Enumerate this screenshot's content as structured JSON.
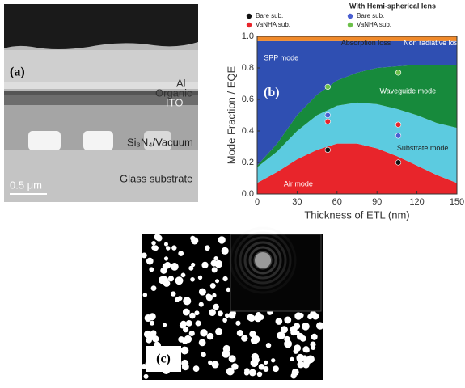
{
  "panel_a": {
    "label": "(a)",
    "layers": [
      "Al",
      "Organic",
      "ITO",
      "Si₃N₄/Vacuum",
      "Glass substrate"
    ],
    "scale_bar": "0.5 μm"
  },
  "chart_data": {
    "type": "stacked-area",
    "panel_label": "(b)",
    "x_label": "Thickness of ETL (nm)",
    "y_label": "Mode Fraction / EQE",
    "x": [
      0,
      15,
      30,
      45,
      60,
      75,
      90,
      105,
      120,
      135,
      150
    ],
    "xlim": [
      0,
      150
    ],
    "xticks": [
      0,
      30,
      60,
      90,
      120,
      150
    ],
    "ylim": [
      0,
      1
    ],
    "yticks": [
      {
        "value": 0,
        "label": "0.0"
      },
      0.2,
      0.4,
      0.6,
      0.8,
      {
        "value": 1,
        "label": "1.0"
      }
    ],
    "series": [
      {
        "name": "Air mode",
        "color": "#e8252b",
        "values": [
          0.07,
          0.14,
          0.22,
          0.28,
          0.32,
          0.32,
          0.29,
          0.24,
          0.18,
          0.12,
          0.07
        ]
      },
      {
        "name": "Substrate mode",
        "color": "#5ccbe0",
        "values": [
          0.1,
          0.13,
          0.18,
          0.22,
          0.24,
          0.26,
          0.28,
          0.3,
          0.32,
          0.33,
          0.35
        ]
      },
      {
        "name": "Waveguide mode",
        "color": "#178a3c",
        "values": [
          0.01,
          0.05,
          0.1,
          0.13,
          0.16,
          0.19,
          0.23,
          0.27,
          0.32,
          0.37,
          0.4
        ]
      },
      {
        "name": "SPP mode",
        "color": "#2f4fb2",
        "values": [
          0.79,
          0.65,
          0.47,
          0.34,
          0.25,
          0.2,
          0.17,
          0.16,
          0.15,
          0.15,
          0.15
        ]
      },
      {
        "name": "Absorption loss",
        "color": "#f08a2b",
        "values": [
          0.03,
          0.03,
          0.03,
          0.03,
          0.03,
          0.03,
          0.03,
          0.03,
          0.03,
          0.03,
          0.03
        ]
      }
    ],
    "annotations": [
      "Non radiative loss"
    ],
    "legend_title": "With Hemi-spherical lens",
    "markers": [
      {
        "name": "Bare sub.",
        "color": "#111111",
        "x": [
          53,
          106
        ],
        "values": [
          0.28,
          0.2
        ]
      },
      {
        "name": "VaNHA sub.",
        "color": "#e8252b",
        "x": [
          53,
          106
        ],
        "values": [
          0.46,
          0.44
        ]
      },
      {
        "name": "Bare sub.",
        "color": "#4a5fd0",
        "x": [
          53,
          106
        ],
        "values": [
          0.5,
          0.37
        ]
      },
      {
        "name": "VaNHA sub.",
        "color": "#6cc04a",
        "x": [
          53,
          106
        ],
        "values": [
          0.68,
          0.77
        ]
      }
    ]
  },
  "panel_c": {
    "label": "(c)"
  }
}
